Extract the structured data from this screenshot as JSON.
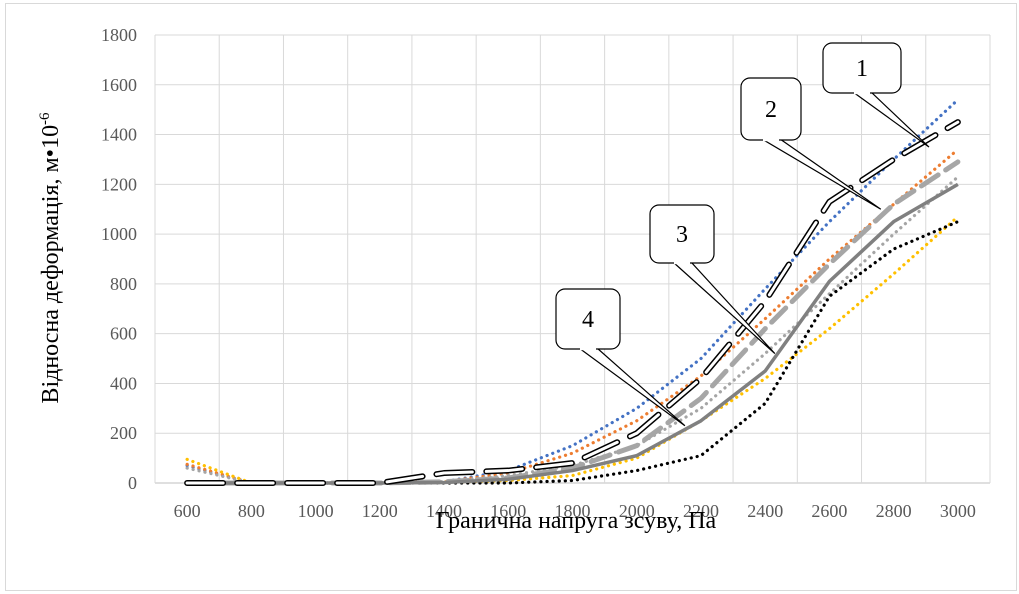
{
  "chart_data": {
    "type": "line",
    "xlabel": "Гранична напруга зсуву, Па",
    "ylabel": "Відносна деформація, м•10",
    "ylabel_exponent": "-6",
    "x": [
      600,
      800,
      1000,
      1200,
      1400,
      1600,
      1800,
      2000,
      2200,
      2400,
      2600,
      2800,
      3000
    ],
    "xlim": [
      600,
      3000
    ],
    "ylim": [
      0,
      1800
    ],
    "yticks": [
      0,
      200,
      400,
      600,
      800,
      1000,
      1200,
      1400,
      1600,
      1800
    ],
    "grid": true,
    "series": [
      {
        "color": "#4472C4",
        "style": "dotted",
        "values": [
          70,
          0,
          0,
          0,
          5,
          50,
          150,
          300,
          500,
          780,
          1050,
          1300,
          1540
        ]
      },
      {
        "color": "#ED7D31",
        "style": "dotted",
        "values": [
          75,
          0,
          0,
          0,
          5,
          40,
          120,
          250,
          430,
          660,
          900,
          1120,
          1340
        ]
      },
      {
        "color": "#FFC000",
        "style": "dotted",
        "values": [
          95,
          0,
          0,
          0,
          3,
          10,
          30,
          100,
          250,
          420,
          620,
          840,
          1070
        ]
      },
      {
        "color": "#A5A5A5",
        "style": "dotted",
        "values": [
          60,
          0,
          0,
          0,
          5,
          30,
          70,
          150,
          300,
          520,
          760,
          1000,
          1230
        ]
      },
      {
        "color": "#000000",
        "style": "dotted",
        "values": [
          0,
          0,
          0,
          0,
          0,
          0,
          10,
          50,
          110,
          320,
          750,
          940,
          1050
        ]
      },
      {
        "color": "#A6A6A6",
        "style": "dashed",
        "values": [
          0,
          0,
          0,
          0,
          5,
          20,
          60,
          150,
          340,
          620,
          880,
          1120,
          1290
        ]
      },
      {
        "color": "#808080",
        "style": "solid",
        "values": [
          0,
          0,
          0,
          0,
          2,
          15,
          50,
          110,
          250,
          450,
          810,
          1050,
          1200
        ]
      },
      {
        "color": "#000000",
        "style": "outlined-dash",
        "values": [
          0,
          0,
          0,
          0,
          40,
          50,
          80,
          200,
          420,
          730,
          1130,
          1300,
          1450
        ]
      }
    ],
    "callouts": [
      {
        "label": "1",
        "target": [
          2910,
          1350
        ]
      },
      {
        "label": "2",
        "target": [
          2760,
          1100
        ]
      },
      {
        "label": "3",
        "target": [
          2430,
          520
        ]
      },
      {
        "label": "4",
        "target": [
          2150,
          230
        ]
      }
    ]
  }
}
